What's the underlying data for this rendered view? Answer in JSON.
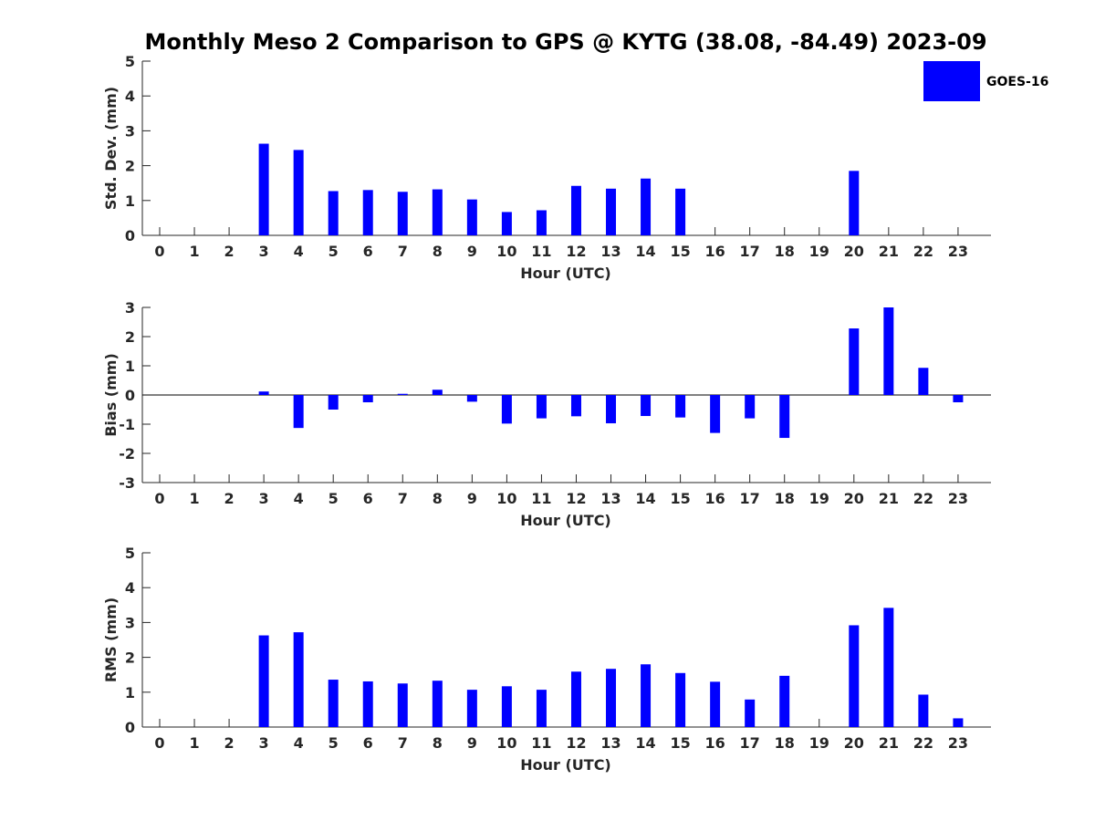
{
  "title": "Monthly Meso 2 Comparison to GPS @ KYTG (38.08, -84.49) 2023-09",
  "legend": {
    "label": "GOES-16",
    "color": "#0000ff"
  },
  "chart_data": [
    {
      "type": "bar",
      "ylabel": "Std. Dev. (mm)",
      "xlabel": "Hour (UTC)",
      "categories": [
        "0",
        "1",
        "2",
        "3",
        "4",
        "5",
        "6",
        "7",
        "8",
        "9",
        "10",
        "11",
        "12",
        "13",
        "14",
        "15",
        "16",
        "17",
        "18",
        "19",
        "20",
        "21",
        "22",
        "23"
      ],
      "ylim": [
        0,
        5
      ],
      "yticks": [
        0,
        1,
        2,
        3,
        4,
        5
      ],
      "series": [
        {
          "name": "GOES-16",
          "color": "#0000ff",
          "values": [
            null,
            null,
            null,
            2.63,
            2.45,
            1.27,
            1.3,
            1.25,
            1.32,
            1.03,
            0.67,
            0.72,
            1.42,
            1.34,
            1.63,
            1.34,
            null,
            null,
            null,
            null,
            1.85,
            null,
            null,
            null
          ]
        }
      ]
    },
    {
      "type": "bar",
      "ylabel": "Bias (mm)",
      "xlabel": "Hour (UTC)",
      "categories": [
        "0",
        "1",
        "2",
        "3",
        "4",
        "5",
        "6",
        "7",
        "8",
        "9",
        "10",
        "11",
        "12",
        "13",
        "14",
        "15",
        "16",
        "17",
        "18",
        "19",
        "20",
        "21",
        "22",
        "23"
      ],
      "ylim": [
        -3,
        3
      ],
      "yticks": [
        -3,
        -2,
        -1,
        0,
        1,
        2,
        3
      ],
      "zero_line": true,
      "series": [
        {
          "name": "GOES-16",
          "color": "#0000ff",
          "values": [
            null,
            null,
            null,
            0.12,
            -1.13,
            -0.5,
            -0.25,
            0.04,
            0.18,
            -0.23,
            -0.98,
            -0.8,
            -0.73,
            -0.97,
            -0.72,
            -0.77,
            -1.3,
            -0.8,
            -1.47,
            null,
            2.28,
            3.0,
            0.93,
            -0.25
          ]
        }
      ]
    },
    {
      "type": "bar",
      "ylabel": "RMS (mm)",
      "xlabel": "Hour (UTC)",
      "categories": [
        "0",
        "1",
        "2",
        "3",
        "4",
        "5",
        "6",
        "7",
        "8",
        "9",
        "10",
        "11",
        "12",
        "13",
        "14",
        "15",
        "16",
        "17",
        "18",
        "19",
        "20",
        "21",
        "22",
        "23"
      ],
      "ylim": [
        0,
        5
      ],
      "yticks": [
        0,
        1,
        2,
        3,
        4,
        5
      ],
      "series": [
        {
          "name": "GOES-16",
          "color": "#0000ff",
          "values": [
            null,
            null,
            null,
            2.63,
            2.72,
            1.36,
            1.31,
            1.25,
            1.33,
            1.07,
            1.17,
            1.07,
            1.59,
            1.67,
            1.8,
            1.55,
            1.3,
            0.79,
            1.47,
            null,
            2.92,
            3.42,
            0.93,
            0.25
          ]
        }
      ]
    }
  ]
}
